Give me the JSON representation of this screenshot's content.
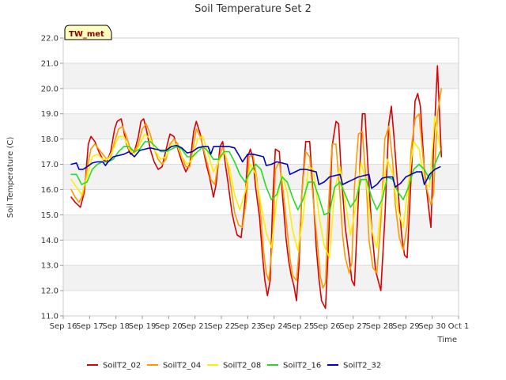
{
  "chart_data": {
    "type": "line",
    "title": "Soil Temperature Set 2",
    "xlabel": "Time",
    "ylabel": "Soil Temperature (C)",
    "badge": "TW_met",
    "ylim": [
      11.0,
      22.0
    ],
    "yticks": [
      "11.0",
      "12.0",
      "13.0",
      "14.0",
      "15.0",
      "16.0",
      "17.0",
      "18.0",
      "19.0",
      "20.0",
      "21.0",
      "22.0"
    ],
    "xlim": [
      0,
      15
    ],
    "xticks": [
      "Sep 16",
      "Sep 17",
      "Sep 18",
      "Sep 19",
      "Sep 20",
      "Sep 21",
      "Sep 22",
      "Sep 23",
      "Sep 24",
      "Sep 25",
      "Sep 26",
      "Sep 27",
      "Sep 28",
      "Sep 29",
      "Sep 30",
      "Oct 1"
    ],
    "grid": true,
    "legend_position": "bottom",
    "series": [
      {
        "name": "SoilT2_02",
        "color": "#dd0000",
        "x": [
          0.3,
          0.45,
          0.55,
          0.65,
          0.8,
          0.95,
          1.05,
          1.2,
          1.35,
          1.5,
          1.65,
          1.8,
          1.95,
          2.05,
          2.2,
          2.3,
          2.4,
          2.55,
          2.7,
          2.85,
          2.95,
          3.05,
          3.15,
          3.3,
          3.45,
          3.6,
          3.75,
          3.95,
          4.05,
          4.2,
          4.35,
          4.5,
          4.65,
          4.8,
          4.95,
          5.05,
          5.2,
          5.35,
          5.45,
          5.55,
          5.7,
          5.8,
          5.95,
          6.05,
          6.15,
          6.25,
          6.4,
          6.5,
          6.6,
          6.75,
          6.9,
          7.0,
          7.1,
          7.2,
          7.3,
          7.45,
          7.55,
          7.65,
          7.75,
          7.85,
          7.95,
          8.05,
          8.2,
          8.3,
          8.45,
          8.55,
          8.65,
          8.75,
          8.85,
          8.95,
          9.05,
          9.2,
          9.35,
          9.5,
          9.6,
          9.7,
          9.8,
          9.95,
          10.05,
          10.2,
          10.35,
          10.45,
          10.55,
          10.7,
          10.85,
          10.95,
          11.05,
          11.2,
          11.35,
          11.45,
          11.55,
          11.7,
          11.85,
          11.95,
          12.05,
          12.2,
          12.35,
          12.45,
          12.55,
          12.7,
          12.85,
          12.95,
          13.05,
          13.2,
          13.35,
          13.45,
          13.55,
          13.7,
          13.85,
          13.95,
          14.05,
          14.2,
          14.35
        ],
        "y": [
          15.7,
          15.5,
          15.4,
          15.3,
          15.9,
          17.8,
          18.1,
          17.9,
          17.5,
          17.2,
          17.1,
          17.5,
          18.4,
          18.7,
          18.8,
          18.3,
          17.8,
          17.4,
          17.5,
          18.1,
          18.7,
          18.8,
          18.4,
          17.6,
          17.1,
          16.8,
          16.9,
          17.8,
          18.2,
          18.1,
          17.6,
          17.1,
          16.7,
          17.0,
          18.3,
          18.7,
          18.2,
          17.4,
          16.9,
          16.5,
          15.7,
          16.2,
          17.7,
          17.9,
          17.0,
          16.3,
          15.1,
          14.6,
          14.2,
          14.1,
          15.6,
          17.3,
          17.6,
          17.2,
          16.1,
          14.9,
          13.5,
          12.4,
          11.8,
          12.4,
          15.6,
          17.6,
          17.5,
          16.0,
          14.1,
          13.2,
          12.6,
          12.2,
          11.6,
          13.1,
          15.8,
          17.9,
          17.9,
          15.5,
          13.7,
          12.5,
          11.6,
          11.3,
          13.5,
          17.7,
          18.7,
          18.6,
          16.6,
          14.5,
          13.3,
          12.4,
          12.2,
          15.6,
          19.0,
          19.0,
          17.1,
          14.5,
          12.8,
          12.4,
          12.0,
          14.8,
          18.6,
          19.3,
          18.1,
          16.0,
          14.1,
          13.4,
          13.3,
          16.5,
          19.5,
          19.8,
          19.3,
          16.8,
          15.4,
          14.5,
          17.6,
          20.9,
          17.3
        ]
      },
      {
        "name": "SoilT2_04",
        "color": "#ff9900",
        "x": [
          0.3,
          0.45,
          0.6,
          0.75,
          0.9,
          1.05,
          1.2,
          1.35,
          1.5,
          1.65,
          1.8,
          1.95,
          2.1,
          2.25,
          2.4,
          2.55,
          2.7,
          2.85,
          3.0,
          3.15,
          3.3,
          3.45,
          3.6,
          3.75,
          3.9,
          4.05,
          4.2,
          4.35,
          4.5,
          4.65,
          4.8,
          4.95,
          5.05,
          5.2,
          5.35,
          5.5,
          5.6,
          5.75,
          5.9,
          6.05,
          6.2,
          6.35,
          6.5,
          6.65,
          6.8,
          6.95,
          7.05,
          7.2,
          7.35,
          7.5,
          7.6,
          7.7,
          7.8,
          7.95,
          8.05,
          8.2,
          8.35,
          8.5,
          8.6,
          8.7,
          8.85,
          8.95,
          9.05,
          9.2,
          9.35,
          9.5,
          9.65,
          9.75,
          9.85,
          9.95,
          10.05,
          10.2,
          10.35,
          10.5,
          10.6,
          10.7,
          10.85,
          10.95,
          11.05,
          11.2,
          11.35,
          11.5,
          11.6,
          11.75,
          11.9,
          12.05,
          12.2,
          12.35,
          12.5,
          12.6,
          12.75,
          12.9,
          13.05,
          13.2,
          13.35,
          13.5,
          13.65,
          13.8,
          13.95,
          14.05,
          14.2,
          14.35
        ],
        "y": [
          16.0,
          15.7,
          15.5,
          15.8,
          16.8,
          17.6,
          17.8,
          17.6,
          17.4,
          17.2,
          17.3,
          17.9,
          18.4,
          18.5,
          18.1,
          17.6,
          17.5,
          17.8,
          18.4,
          18.6,
          18.2,
          17.6,
          17.2,
          17.0,
          17.2,
          17.8,
          18.0,
          17.8,
          17.3,
          16.9,
          16.9,
          17.8,
          18.4,
          18.1,
          17.5,
          16.9,
          16.4,
          16.2,
          17.2,
          17.7,
          17.2,
          16.2,
          15.1,
          14.6,
          14.5,
          15.6,
          17.3,
          17.4,
          16.4,
          14.9,
          13.6,
          12.7,
          12.4,
          14.0,
          16.8,
          17.1,
          15.9,
          14.4,
          13.3,
          12.6,
          12.4,
          13.6,
          15.8,
          17.5,
          17.3,
          15.4,
          13.8,
          12.6,
          12.1,
          12.3,
          15.1,
          17.8,
          17.8,
          15.8,
          14.2,
          13.3,
          12.7,
          13.1,
          16.1,
          18.2,
          18.3,
          16.2,
          14.0,
          12.9,
          12.7,
          14.7,
          18.0,
          18.5,
          17.1,
          15.4,
          14.1,
          13.6,
          14.6,
          17.6,
          18.8,
          19.0,
          17.3,
          16.0,
          15.4,
          15.8,
          19.0,
          20.0
        ]
      },
      {
        "name": "SoilT2_08",
        "color": "#ffee00",
        "x": [
          0.3,
          0.5,
          0.7,
          0.9,
          1.1,
          1.3,
          1.5,
          1.7,
          1.9,
          2.1,
          2.3,
          2.5,
          2.7,
          2.9,
          3.1,
          3.3,
          3.5,
          3.7,
          3.9,
          4.1,
          4.3,
          4.5,
          4.7,
          4.9,
          5.1,
          5.3,
          5.5,
          5.7,
          5.9,
          6.1,
          6.3,
          6.5,
          6.7,
          6.9,
          7.1,
          7.3,
          7.5,
          7.7,
          7.9,
          8.1,
          8.3,
          8.5,
          8.7,
          8.9,
          9.1,
          9.3,
          9.5,
          9.7,
          9.9,
          10.1,
          10.3,
          10.5,
          10.7,
          10.9,
          11.1,
          11.3,
          11.5,
          11.7,
          11.9,
          12.1,
          12.3,
          12.5,
          12.7,
          12.9,
          13.1,
          13.3,
          13.5,
          13.7,
          13.9,
          14.1,
          14.3
        ],
        "y": [
          16.4,
          16.1,
          15.8,
          16.5,
          17.3,
          17.4,
          17.2,
          17.2,
          17.6,
          18.1,
          18.1,
          17.6,
          17.4,
          17.8,
          18.2,
          18.0,
          17.5,
          17.2,
          17.3,
          17.8,
          17.8,
          17.3,
          17.0,
          17.2,
          18.0,
          18.1,
          17.4,
          16.7,
          17.1,
          17.5,
          16.9,
          15.8,
          15.2,
          15.9,
          17.0,
          16.6,
          15.4,
          14.3,
          13.7,
          15.6,
          16.6,
          15.9,
          14.4,
          13.6,
          14.9,
          16.9,
          16.8,
          15.0,
          13.8,
          13.3,
          16.0,
          16.9,
          15.5,
          14.2,
          15.3,
          17.1,
          16.3,
          14.4,
          13.7,
          15.8,
          17.2,
          16.6,
          15.2,
          14.5,
          16.3,
          17.9,
          17.6,
          16.3,
          16.1,
          18.9,
          17.6
        ]
      },
      {
        "name": "SoilT2_16",
        "color": "#22dd22",
        "x": [
          0.3,
          0.5,
          0.7,
          0.9,
          1.1,
          1.3,
          1.5,
          1.7,
          1.9,
          2.1,
          2.3,
          2.5,
          2.7,
          2.9,
          3.1,
          3.3,
          3.5,
          3.7,
          3.9,
          4.1,
          4.3,
          4.5,
          4.7,
          4.9,
          5.1,
          5.3,
          5.5,
          5.7,
          5.9,
          6.1,
          6.3,
          6.5,
          6.7,
          6.9,
          7.1,
          7.3,
          7.5,
          7.7,
          7.9,
          8.1,
          8.3,
          8.5,
          8.7,
          8.9,
          9.1,
          9.3,
          9.5,
          9.7,
          9.9,
          10.1,
          10.3,
          10.5,
          10.7,
          10.9,
          11.1,
          11.3,
          11.5,
          11.7,
          11.9,
          12.1,
          12.3,
          12.5,
          12.7,
          12.9,
          13.1,
          13.3,
          13.5,
          13.7,
          13.9,
          14.1,
          14.3
        ],
        "y": [
          16.6,
          16.6,
          16.2,
          16.3,
          16.8,
          17.0,
          17.1,
          17.1,
          17.2,
          17.5,
          17.7,
          17.7,
          17.5,
          17.6,
          17.9,
          17.9,
          17.7,
          17.5,
          17.5,
          17.6,
          17.7,
          17.6,
          17.3,
          17.3,
          17.5,
          17.7,
          17.5,
          17.2,
          17.2,
          17.5,
          17.5,
          17.1,
          16.6,
          16.3,
          16.7,
          17.0,
          16.8,
          16.1,
          15.6,
          15.8,
          16.5,
          16.3,
          15.7,
          15.2,
          15.6,
          16.3,
          16.3,
          15.7,
          15.0,
          15.1,
          16.1,
          16.3,
          15.8,
          15.3,
          15.6,
          16.4,
          16.4,
          15.7,
          15.2,
          15.6,
          16.5,
          16.4,
          15.9,
          15.6,
          16.1,
          16.8,
          17.0,
          16.8,
          16.4,
          17.0,
          17.5
        ]
      },
      {
        "name": "SoilT2_32",
        "color": "#0000cc",
        "x": [
          0.3,
          0.5,
          0.6,
          0.75,
          0.9,
          1.1,
          1.3,
          1.5,
          1.6,
          1.7,
          1.9,
          2.1,
          2.3,
          2.5,
          2.7,
          2.9,
          3.1,
          3.3,
          3.5,
          3.7,
          3.9,
          4.1,
          4.3,
          4.5,
          4.7,
          4.9,
          5.1,
          5.3,
          5.5,
          5.6,
          5.7,
          5.9,
          6.1,
          6.3,
          6.5,
          6.7,
          6.8,
          7.0,
          7.2,
          7.4,
          7.6,
          7.7,
          7.9,
          8.1,
          8.3,
          8.5,
          8.6,
          8.8,
          9.0,
          9.2,
          9.4,
          9.6,
          9.7,
          9.9,
          10.1,
          10.3,
          10.5,
          10.6,
          10.8,
          11.0,
          11.2,
          11.4,
          11.6,
          11.7,
          11.9,
          12.1,
          12.3,
          12.5,
          12.6,
          12.8,
          13.0,
          13.2,
          13.4,
          13.6,
          13.7,
          13.9,
          14.1,
          14.3
        ],
        "y": [
          17.0,
          17.05,
          16.8,
          16.8,
          16.9,
          17.05,
          17.1,
          17.1,
          16.95,
          17.1,
          17.3,
          17.35,
          17.4,
          17.5,
          17.3,
          17.55,
          17.6,
          17.65,
          17.6,
          17.55,
          17.55,
          17.7,
          17.75,
          17.65,
          17.45,
          17.5,
          17.65,
          17.7,
          17.7,
          17.4,
          17.7,
          17.7,
          17.7,
          17.7,
          17.65,
          17.3,
          17.1,
          17.4,
          17.4,
          17.35,
          17.3,
          16.95,
          17.0,
          17.1,
          17.05,
          17.0,
          16.6,
          16.7,
          16.8,
          16.8,
          16.75,
          16.7,
          16.2,
          16.3,
          16.5,
          16.55,
          16.6,
          16.2,
          16.3,
          16.4,
          16.5,
          16.55,
          16.6,
          16.05,
          16.2,
          16.45,
          16.5,
          16.5,
          16.1,
          16.25,
          16.5,
          16.6,
          16.7,
          16.7,
          16.2,
          16.6,
          16.8,
          16.9
        ]
      }
    ]
  }
}
